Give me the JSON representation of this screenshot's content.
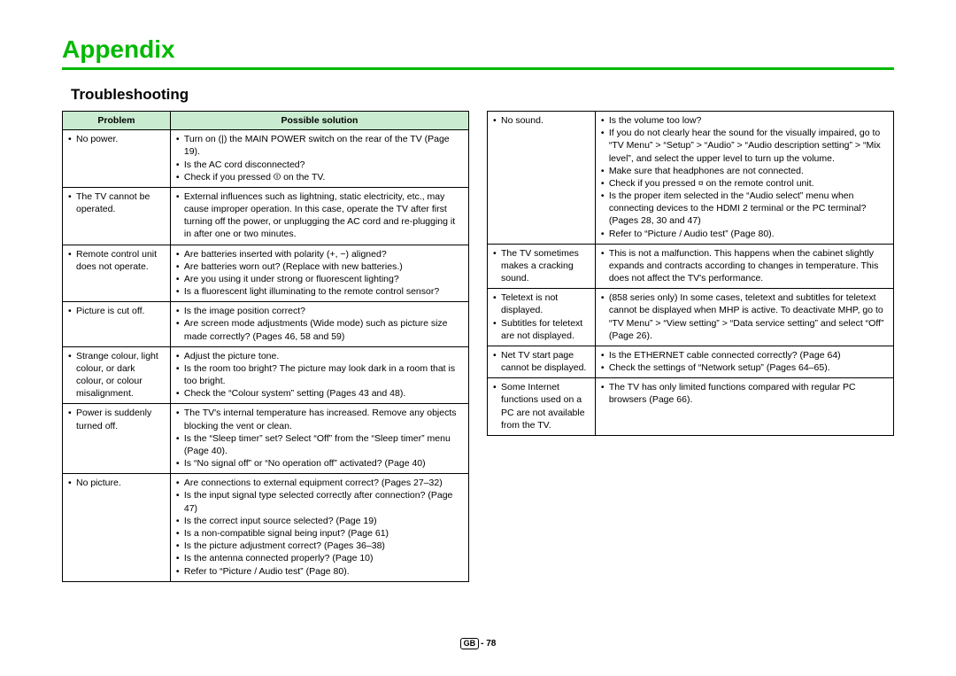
{
  "page": {
    "title": "Appendix",
    "section": "Troubleshooting",
    "accent_color": "#00b900",
    "header_bg": "#c9ecd0",
    "footer_label": "GB",
    "footer_page": "- 78"
  },
  "headers": {
    "problem": "Problem",
    "solution": "Possible solution"
  },
  "left": [
    {
      "p": [
        "No power."
      ],
      "s": [
        "Turn on (|) the MAIN POWER switch on the rear of the TV (Page 19).",
        "Is the AC cord disconnected?",
        "Check if you pressed ⏼ on the TV."
      ]
    },
    {
      "p": [
        "The TV cannot be operated."
      ],
      "s": [
        "External influences such as lightning, static electricity, etc., may cause improper operation. In this case, operate the TV after first turning off the power, or unplugging the AC cord and re-plugging it in after one or two minutes."
      ]
    },
    {
      "p": [
        "Remote control unit does not operate."
      ],
      "s": [
        "Are batteries inserted with polarity (+, −) aligned?",
        "Are batteries worn out? (Replace with new batteries.)",
        "Are you using it under strong or fluorescent lighting?",
        "Is a fluorescent light illuminating to the remote control sensor?"
      ]
    },
    {
      "p": [
        "Picture is cut off."
      ],
      "s": [
        "Is the image position correct?",
        "Are screen mode adjustments (Wide mode) such as picture size made correctly? (Pages 46, 58 and 59)"
      ]
    },
    {
      "p": [
        "Strange colour, light colour, or dark colour, or colour misalignment."
      ],
      "s": [
        "Adjust the picture tone.",
        "Is the room too bright? The picture may look dark in a room that is too bright.",
        "Check the “Colour system” setting (Pages 43 and 48)."
      ]
    },
    {
      "p": [
        "Power is suddenly turned off."
      ],
      "s": [
        "The TV's internal temperature has increased. Remove any objects blocking the vent or clean.",
        "Is the “Sleep timer” set? Select “Off” from the “Sleep timer” menu (Page 40).",
        "Is “No signal off” or “No operation off” activated? (Page 40)"
      ]
    },
    {
      "p": [
        "No picture."
      ],
      "s": [
        "Are connections to external equipment correct? (Pages 27–32)",
        "Is the input signal type selected correctly after connection? (Page 47)",
        "Is the correct input source selected? (Page 19)",
        "Is a non-compatible signal being input? (Page 61)",
        "Is the picture adjustment correct? (Pages 36–38)",
        "Is the antenna connected properly? (Page 10)",
        "Refer to “Picture / Audio test” (Page 80)."
      ]
    }
  ],
  "right": [
    {
      "p": [
        "No sound."
      ],
      "s": [
        "Is the volume too low?",
        "If you do not clearly hear the sound for the visually impaired, go to “TV Menu” > “Setup” > “Audio” > “Audio description setting” > “Mix level”, and select the upper level to turn up the volume.",
        "Make sure that headphones are not connected.",
        "Check if you pressed ¤ on the remote control unit.",
        "Is the proper item selected in the “Audio select” menu when connecting devices to the HDMI 2 terminal or the PC terminal? (Pages 28, 30 and 47)",
        "Refer to “Picture / Audio test” (Page 80)."
      ]
    },
    {
      "p": [
        "The TV sometimes makes a cracking sound."
      ],
      "s": [
        "This is not a malfunction. This happens when the cabinet slightly expands and contracts according to changes in temperature. This does not affect the TV's performance."
      ]
    },
    {
      "p": [
        "Teletext is not displayed.",
        "Subtitles for teletext are not displayed."
      ],
      "s": [
        "(858 series only) In some cases, teletext and subtitles for teletext cannot be displayed when MHP is active. To deactivate MHP, go to “TV Menu” > “View setting” > “Data service setting” and select “Off” (Page 26)."
      ]
    },
    {
      "p": [
        "Net TV start page cannot be displayed."
      ],
      "s": [
        "Is the ETHERNET cable connected correctly? (Page 64)",
        "Check the settings of “Network setup” (Pages 64–65)."
      ]
    },
    {
      "p": [
        "Some Internet functions used on a PC are not available from the TV."
      ],
      "s": [
        "The TV has only limited functions compared with regular PC browsers (Page 66)."
      ]
    }
  ]
}
